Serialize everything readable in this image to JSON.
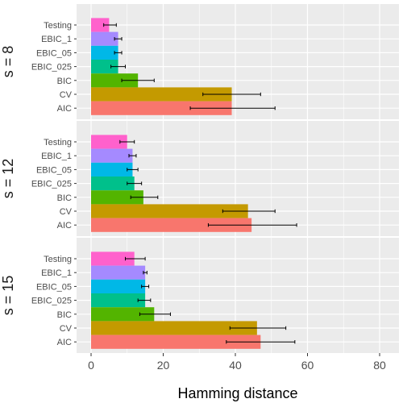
{
  "chart_data": {
    "type": "bar",
    "orientation": "horizontal",
    "xlabel": "Hamming distance",
    "xlim": [
      0,
      80
    ],
    "x_ticks": [
      "0",
      "20",
      "40",
      "60",
      "80"
    ],
    "grid": true,
    "legend": "none",
    "categories": [
      "Testing",
      "EBIC_1",
      "EBIC_05",
      "EBIC_025",
      "BIC",
      "CV",
      "AIC"
    ],
    "category_colors": {
      "Testing": "#ff61cc",
      "EBIC_1": "#a58aff",
      "EBIC_05": "#00b8e7",
      "EBIC_025": "#00c08b",
      "BIC": "#53b400",
      "CV": "#c49a00",
      "AIC": "#f8766d"
    },
    "panels": [
      {
        "label": "s = 8",
        "values": [
          5,
          7.5,
          7.5,
          7.5,
          13,
          39,
          39
        ],
        "err_low": [
          3.5,
          6.5,
          6.5,
          5.5,
          8.5,
          31,
          27.5
        ],
        "err_high": [
          7,
          8.5,
          8.5,
          9.5,
          17.5,
          47,
          51
        ]
      },
      {
        "label": "s = 12",
        "values": [
          10,
          11.5,
          11.5,
          12,
          14.5,
          43.5,
          44.5
        ],
        "err_low": [
          8,
          10.5,
          10,
          10,
          11,
          36.5,
          32.5
        ],
        "err_high": [
          12,
          12.5,
          13,
          14,
          18.5,
          51,
          57
        ]
      },
      {
        "label": "s = 15",
        "values": [
          12,
          15,
          15,
          15,
          17.5,
          46,
          47
        ],
        "err_low": [
          9.5,
          14.5,
          14,
          13,
          13.5,
          38.5,
          37.5
        ],
        "err_high": [
          15,
          15.5,
          16,
          16.5,
          22,
          54,
          56.5
        ]
      }
    ]
  }
}
